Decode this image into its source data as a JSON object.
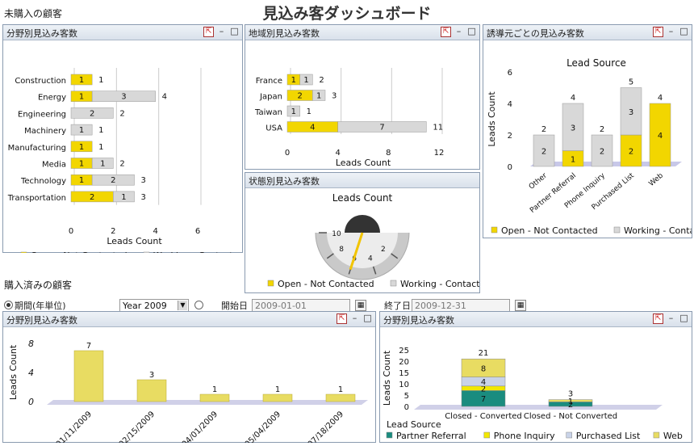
{
  "page_title": "見込み客ダッシュボード",
  "unpurchased_label": "未購入の顧客",
  "purchased_label": "購入済みの顧客",
  "filters": {
    "period_label": "期間(年単位)",
    "year_value": "Year 2009",
    "start_label": "開始日",
    "start_value": "2009-01-01",
    "end_label": "終了日",
    "end_value": "2009-12-31"
  },
  "icons": {
    "popout": "popout-icon",
    "minimize": "minimize-icon",
    "maximize": "maximize-icon",
    "calendar": "calendar-icon"
  },
  "colors": {
    "open": "#f2d600",
    "working": "#d8d8d8",
    "partner": "#1a8c7f",
    "phone": "#f2e800",
    "purchased": "#c9d3e8",
    "web": "#e8dc62"
  },
  "panels": {
    "industry": {
      "title": "分野別見込み客数",
      "chart_data": {
        "type": "bar",
        "orientation": "horizontal",
        "stacked": true,
        "categories": [
          "Construction",
          "Energy",
          "Engineering",
          "Machinery",
          "Manufacturing",
          "Media",
          "Technology",
          "Transportation"
        ],
        "series": [
          {
            "name": "Open - Not Contacted",
            "values": [
              1,
              1,
              null,
              null,
              1,
              1,
              1,
              2
            ]
          },
          {
            "name": "Working - Contacted",
            "values": [
              null,
              3,
              2,
              1,
              null,
              1,
              2,
              1
            ]
          }
        ],
        "totals": [
          1,
          4,
          2,
          1,
          1,
          2,
          3,
          3
        ],
        "xticks": [
          0,
          2,
          4,
          6
        ],
        "xlim": [
          0,
          6
        ],
        "xlabel": "Leads Count",
        "legend": "bottom"
      }
    },
    "region": {
      "title": "地域別見込み客数",
      "chart_data": {
        "type": "bar",
        "orientation": "horizontal",
        "stacked": true,
        "categories": [
          "France",
          "Japan",
          "Taiwan",
          "USA"
        ],
        "series": [
          {
            "name": "Open - Not Contacted",
            "values": [
              1,
              2,
              null,
              4
            ]
          },
          {
            "name": "Working - Contacted",
            "values": [
              1,
              1,
              1,
              7
            ]
          }
        ],
        "totals": [
          2,
          3,
          1,
          11
        ],
        "xticks": [
          0,
          4,
          8,
          12
        ],
        "xlim": [
          0,
          12
        ],
        "xlabel": "Leads Count",
        "legend": "bottom"
      }
    },
    "status": {
      "title": "状態別見込み客数",
      "chart_data": {
        "type": "gauge",
        "title": "Leads Count",
        "min": 0,
        "max": 10,
        "ticks": [
          2,
          4,
          6,
          8,
          10
        ],
        "value": 6,
        "series": [
          "Open - Not Contacted",
          "Working - Contacted"
        ],
        "legend": "bottom"
      }
    },
    "source": {
      "title": "誘導元ごとの見込み客数",
      "chart_data": {
        "type": "bar",
        "stacked": true,
        "title": "Lead Source",
        "categories": [
          "Other",
          "Partner Referral",
          "Phone Inquiry",
          "Purchased List",
          "Web"
        ],
        "series": [
          {
            "name": "Open - Not Contacted",
            "values": [
              null,
              1,
              null,
              2,
              4
            ]
          },
          {
            "name": "Working - Contacted",
            "values": [
              2,
              3,
              2,
              3,
              null
            ]
          }
        ],
        "totals": [
          2,
          4,
          2,
          5,
          4
        ],
        "ylim": [
          0,
          6
        ],
        "yticks": [
          0,
          2,
          4,
          6
        ],
        "ylabel": "Leads Count",
        "legend": "bottom"
      }
    },
    "converted_by_date": {
      "title": "分野別見込み客数",
      "chart_data": {
        "type": "bar",
        "categories": [
          "01/11/2009",
          "02/15/2009",
          "04/01/2009",
          "05/04/2009",
          "07/18/2009"
        ],
        "values": [
          7,
          3,
          1,
          1,
          1
        ],
        "ylim": [
          0,
          8
        ],
        "yticks": [
          0,
          4,
          8
        ],
        "ylabel": "Leads Count"
      }
    },
    "converted_by_status": {
      "title": "分野別見込み客数",
      "chart_data": {
        "type": "bar",
        "stacked": true,
        "categories": [
          "Closed - Converted",
          "Closed - Not Converted"
        ],
        "series": [
          {
            "name": "Partner Referral",
            "values": [
              7,
              2
            ]
          },
          {
            "name": "Phone Inquiry",
            "values": [
              2,
              null
            ]
          },
          {
            "name": "Purchased List",
            "values": [
              4,
              null
            ]
          },
          {
            "name": "Web",
            "values": [
              8,
              1
            ]
          }
        ],
        "totals": [
          21,
          3
        ],
        "ylim": [
          0,
          25
        ],
        "yticks": [
          0,
          5,
          10,
          15,
          20,
          25
        ],
        "ylabel": "Leads Count",
        "legend_title": "Lead Source",
        "legend": "bottom"
      }
    }
  }
}
